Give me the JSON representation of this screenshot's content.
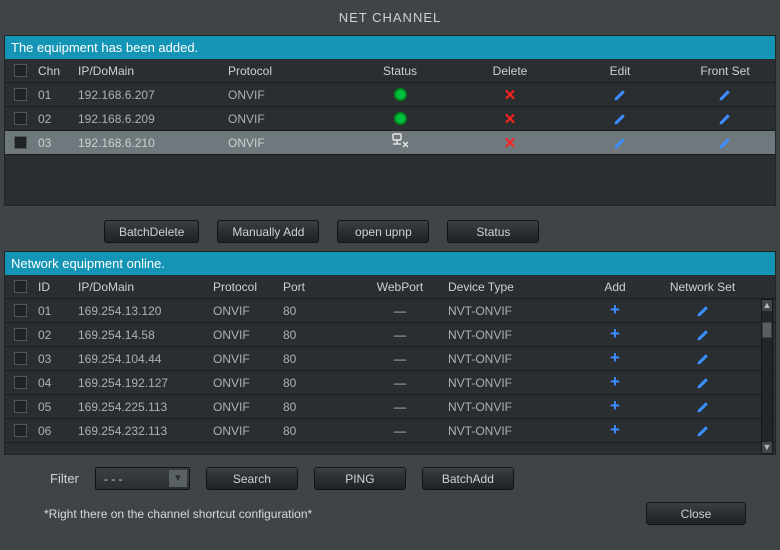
{
  "title": "NET CHANNEL",
  "added": {
    "header": "The equipment has been added.",
    "columns": {
      "chn": "Chn",
      "ip": "IP/DoMain",
      "protocol": "Protocol",
      "status": "Status",
      "delete": "Delete",
      "edit": "Edit",
      "frontset": "Front Set"
    },
    "rows": [
      {
        "chn": "01",
        "ip": "192.168.6.207",
        "protocol": "ONVIF",
        "status": "ok",
        "selected": false
      },
      {
        "chn": "02",
        "ip": "192.168.6.209",
        "protocol": "ONVIF",
        "status": "ok",
        "selected": false
      },
      {
        "chn": "03",
        "ip": "192.168.6.210",
        "protocol": "ONVIF",
        "status": "err",
        "selected": true
      }
    ]
  },
  "buttons_mid": {
    "batch_delete": "BatchDelete",
    "manual_add": "Manually Add",
    "open_upnp": "open upnp",
    "status": "Status"
  },
  "online": {
    "header": "Network equipment online.",
    "columns": {
      "id": "ID",
      "ip": "IP/DoMain",
      "protocol": "Protocol",
      "port": "Port",
      "webport": "WebPort",
      "devtype": "Device Type",
      "add": "Add",
      "netset": "Network Set"
    },
    "rows": [
      {
        "id": "01",
        "ip": "169.254.13.120",
        "protocol": "ONVIF",
        "port": "80",
        "webport": "—",
        "devtype": "NVT-ONVIF"
      },
      {
        "id": "02",
        "ip": "169.254.14.58",
        "protocol": "ONVIF",
        "port": "80",
        "webport": "—",
        "devtype": "NVT-ONVIF"
      },
      {
        "id": "03",
        "ip": "169.254.104.44",
        "protocol": "ONVIF",
        "port": "80",
        "webport": "—",
        "devtype": "NVT-ONVIF"
      },
      {
        "id": "04",
        "ip": "169.254.192.127",
        "protocol": "ONVIF",
        "port": "80",
        "webport": "—",
        "devtype": "NVT-ONVIF"
      },
      {
        "id": "05",
        "ip": "169.254.225.113",
        "protocol": "ONVIF",
        "port": "80",
        "webport": "—",
        "devtype": "NVT-ONVIF"
      },
      {
        "id": "06",
        "ip": "169.254.232.113",
        "protocol": "ONVIF",
        "port": "80",
        "webport": "—",
        "devtype": "NVT-ONVIF"
      }
    ]
  },
  "footer": {
    "filter_label": "Filter",
    "filter_value": "- - -",
    "search": "Search",
    "ping": "PING",
    "batch_add": "BatchAdd",
    "hint": "*Right there on the channel shortcut configuration*",
    "close": "Close"
  },
  "colors": {
    "accent_header": "#1595b5",
    "status_ok": "#00c040",
    "delete": "#ff2020",
    "edit": "#3a8eff"
  }
}
